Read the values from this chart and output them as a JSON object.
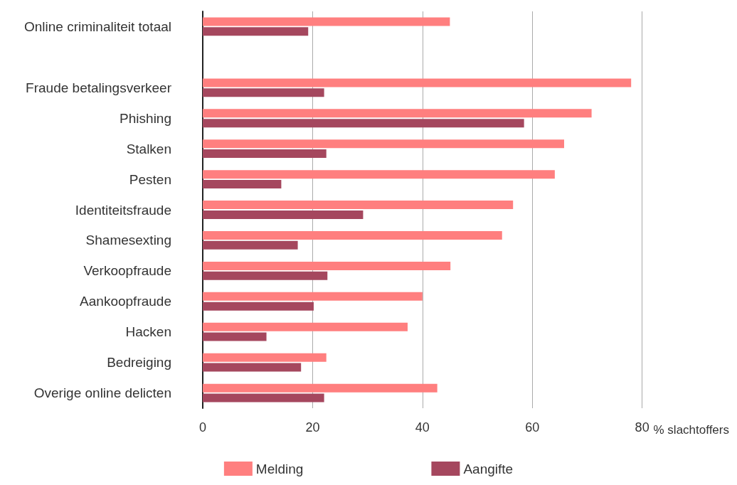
{
  "chart_data": {
    "type": "bar",
    "orientation": "horizontal",
    "xlabel": "% slachtoffers",
    "categories": [
      "Online criminaliteit totaal",
      null,
      "Fraude betalingsverkeer",
      "Phishing",
      "Stalken",
      "Pesten",
      "Identiteitsfraude",
      "Shamesexting",
      "Verkoopfraude",
      "Aankoopfraude",
      "Hacken",
      "Bedreiging",
      "Overige online delicten"
    ],
    "series": [
      {
        "name": "Melding",
        "color": "#ff7f7f",
        "values": [
          45.0,
          null,
          78.0,
          70.8,
          65.8,
          64.1,
          56.5,
          54.5,
          45.1,
          40.0,
          37.3,
          22.5,
          42.7
        ]
      },
      {
        "name": "Aangifte",
        "color": "#a5475e",
        "values": [
          19.2,
          null,
          22.1,
          58.5,
          22.5,
          14.3,
          29.2,
          17.3,
          22.7,
          20.2,
          11.6,
          17.9,
          22.1
        ]
      }
    ],
    "xlim": [
      0,
      80
    ],
    "xticks": [
      0,
      20,
      40,
      60,
      80
    ],
    "grid": "x",
    "legend": "bottom"
  }
}
